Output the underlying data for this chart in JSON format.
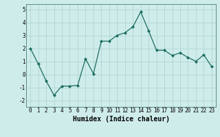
{
  "x": [
    0,
    1,
    2,
    3,
    4,
    5,
    6,
    7,
    8,
    9,
    10,
    11,
    12,
    13,
    14,
    15,
    16,
    17,
    18,
    19,
    20,
    21,
    22,
    23
  ],
  "y": [
    2.0,
    0.8,
    -0.5,
    -1.6,
    -0.9,
    -0.9,
    -0.85,
    1.2,
    0.05,
    2.55,
    2.55,
    3.0,
    3.2,
    3.65,
    4.8,
    3.35,
    1.85,
    1.85,
    1.45,
    1.65,
    1.3,
    1.0,
    1.5,
    0.6
  ],
  "line_color": "#1a6b5e",
  "marker": "D",
  "marker_size": 2.0,
  "bg_color": "#ceecea",
  "grid_color": "#b0d5d3",
  "xlabel": "Humidex (Indice chaleur)",
  "xlim": [
    -0.5,
    23.5
  ],
  "ylim": [
    -2.5,
    5.4
  ],
  "yticks": [
    -2,
    -1,
    0,
    1,
    2,
    3,
    4,
    5
  ],
  "xticks": [
    0,
    1,
    2,
    3,
    4,
    5,
    6,
    7,
    8,
    9,
    10,
    11,
    12,
    13,
    14,
    15,
    16,
    17,
    18,
    19,
    20,
    21,
    22,
    23
  ],
  "tick_fontsize": 5.5,
  "xlabel_fontsize": 7.0,
  "linewidth": 0.9
}
